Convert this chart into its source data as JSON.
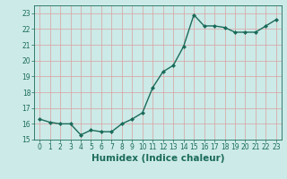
{
  "x": [
    0,
    1,
    2,
    3,
    4,
    5,
    6,
    7,
    8,
    9,
    10,
    11,
    12,
    13,
    14,
    15,
    16,
    17,
    18,
    19,
    20,
    21,
    22,
    23
  ],
  "y": [
    16.3,
    16.1,
    16.0,
    16.0,
    15.3,
    15.6,
    15.5,
    15.5,
    16.0,
    16.3,
    16.7,
    18.3,
    19.3,
    19.7,
    20.9,
    22.9,
    22.2,
    22.2,
    22.1,
    21.8,
    21.8,
    21.8,
    22.2,
    22.6
  ],
  "line_color": "#1a6b5a",
  "marker": "D",
  "marker_size": 2.0,
  "bg_color": "#cceae7",
  "grid_color_major": "#d9a0a0",
  "grid_color_minor": "#cde8e5",
  "xlabel": "Humidex (Indice chaleur)",
  "xlim": [
    -0.5,
    23.5
  ],
  "ylim": [
    15,
    23.5
  ],
  "yticks": [
    15,
    16,
    17,
    18,
    19,
    20,
    21,
    22,
    23
  ],
  "xticks": [
    0,
    1,
    2,
    3,
    4,
    5,
    6,
    7,
    8,
    9,
    10,
    11,
    12,
    13,
    14,
    15,
    16,
    17,
    18,
    19,
    20,
    21,
    22,
    23
  ],
  "tick_fontsize": 5.5,
  "label_fontsize": 7.5,
  "linewidth": 1.0
}
